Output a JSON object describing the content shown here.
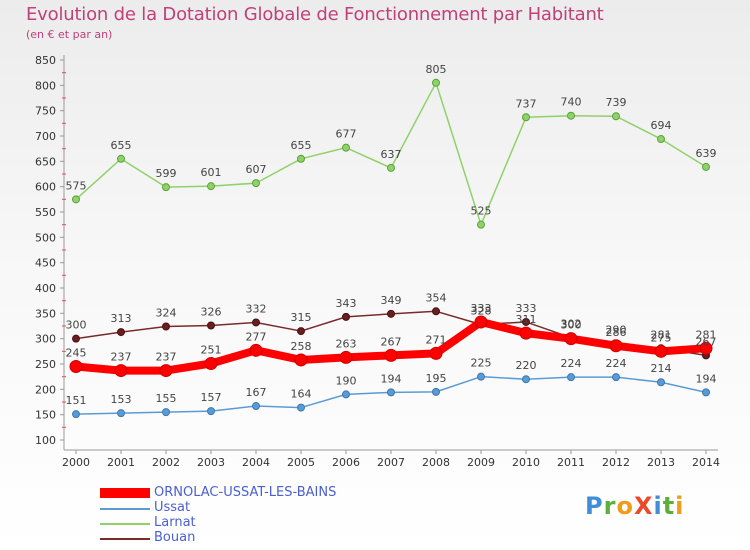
{
  "title": "Evolution de la Dotation Globale de Fonctionnement par Habitant",
  "subtitle": "(en € et par an)",
  "logo_text": "ProXiti",
  "chart_data": {
    "type": "line",
    "title": "Evolution de la Dotation Globale de Fonctionnement par Habitant",
    "subtitle": "(en € et par an)",
    "xlabel": "",
    "ylabel": "",
    "ylim": [
      100,
      850
    ],
    "yticks": [
      100,
      150,
      200,
      250,
      300,
      350,
      400,
      450,
      500,
      550,
      600,
      650,
      700,
      750,
      800,
      850
    ],
    "x": [
      "2000",
      "2001",
      "2002",
      "2003",
      "2004",
      "2005",
      "2006",
      "2007",
      "2008",
      "2009",
      "2010",
      "2011",
      "2012",
      "2013",
      "2014"
    ],
    "grid": false,
    "legend_position": "bottom-left",
    "series": [
      {
        "name": "ORNOLAC-USSAT-LES-BAINS",
        "color": "#ff0000",
        "values": [
          245,
          237,
          237,
          251,
          277,
          258,
          263,
          267,
          271,
          333,
          311,
          300,
          286,
          275,
          281
        ]
      },
      {
        "name": "Ussat",
        "color": "#5b9bd5",
        "values": [
          151,
          153,
          155,
          157,
          167,
          164,
          190,
          194,
          195,
          225,
          220,
          224,
          224,
          214,
          194
        ]
      },
      {
        "name": "Larnat",
        "color": "#8fd16a",
        "values": [
          575,
          655,
          599,
          601,
          607,
          655,
          677,
          637,
          805,
          525,
          737,
          740,
          739,
          694,
          639
        ]
      },
      {
        "name": "Bouan",
        "color": "#7a2a2a",
        "values": [
          300,
          313,
          324,
          326,
          332,
          315,
          343,
          349,
          354,
          328,
          333,
          302,
          290,
          281,
          267
        ]
      }
    ]
  }
}
